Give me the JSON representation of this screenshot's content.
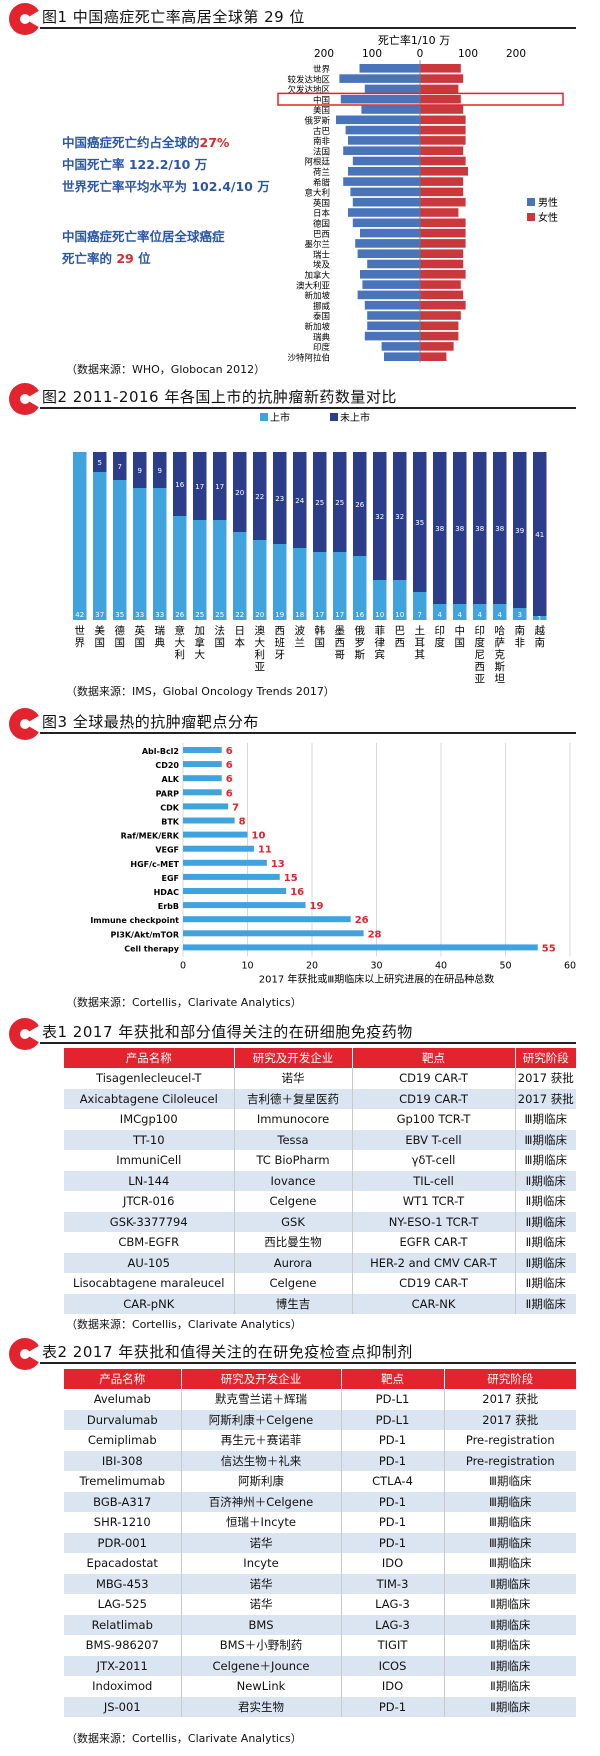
{
  "colors": {
    "accent_red": "#e3232d",
    "male_blue": "#4a74b9",
    "female_red": "#c8383d",
    "listed_blue": "#40a3de",
    "unlisted_navy": "#2c3d8a",
    "text_blue": "#2d57a6"
  },
  "fig1": {
    "title": "图1  中国癌症死亡率高居全球第 29 位",
    "axis_title": "死亡率1/10 万",
    "legend": [
      "男性",
      "女性"
    ],
    "annotations": [
      [
        {
          "t": "中国癌症死亡约占全球的",
          "red": false
        },
        {
          "t": "27%",
          "red": true
        }
      ],
      [
        {
          "t": "中国死亡率 122.2/10 万",
          "red": false
        }
      ],
      [
        {
          "t": "世界死亡率平均水平为 102.4/10 万",
          "red": false
        }
      ],
      [
        {
          "t": "中国癌症死亡率位居全球癌症",
          "red": false
        }
      ],
      [
        {
          "t": "死亡率的 ",
          "red": false
        },
        {
          "t": "29",
          "red": true
        },
        {
          "t": " 位",
          "red": false
        }
      ]
    ],
    "source": "（数据来源：WHO，Globocan 2012）",
    "chart_data": {
      "type": "bar",
      "orientation": "horizontal-diverging",
      "xlim": [
        -200,
        200
      ],
      "x_ticks": [
        "200",
        "100",
        "0",
        "100",
        "200"
      ],
      "highlight": "中国",
      "categories": [
        "世界",
        "较发达地区",
        "欠发达地区",
        "中国",
        "美国",
        "俄罗斯",
        "古巴",
        "南非",
        "法国",
        "阿根廷",
        "荷兰",
        "希腊",
        "意大利",
        "英国",
        "日本",
        "德国",
        "巴西",
        "墨尔兰",
        "瑞士",
        "埃及",
        "加拿大",
        "澳大利亚",
        "新加坡",
        "挪威",
        "泰国",
        "新加坡",
        "瑞典",
        "印度",
        "沙特阿拉伯"
      ],
      "series": [
        {
          "name": "男性",
          "values": [
            126,
            168,
            115,
            165,
            122,
            175,
            155,
            150,
            160,
            140,
            150,
            160,
            145,
            140,
            150,
            140,
            125,
            135,
            130,
            110,
            125,
            120,
            130,
            115,
            110,
            110,
            115,
            80,
            75
          ]
        },
        {
          "name": "女性",
          "values": [
            85,
            90,
            80,
            85,
            90,
            95,
            95,
            95,
            90,
            95,
            100,
            90,
            90,
            95,
            80,
            95,
            95,
            95,
            90,
            90,
            95,
            85,
            90,
            95,
            85,
            80,
            80,
            70,
            55
          ]
        }
      ]
    }
  },
  "fig2": {
    "title": "图2  2011-2016 年各国上市的抗肿瘤新药数量对比",
    "legend": [
      "上市",
      "未上市"
    ],
    "source": "（数据来源：IMS，Global Oncology Trends 2017）",
    "chart_data": {
      "type": "bar",
      "stacked": true,
      "ylim": [
        0,
        42
      ],
      "categories": [
        "世界",
        "美国",
        "德国",
        "英国",
        "瑞典",
        "意大利",
        "加拿大",
        "法国",
        "日本",
        "澳大利亚",
        "西班牙",
        "波兰",
        "韩国",
        "墨西哥",
        "俄罗斯",
        "菲律宾",
        "巴西",
        "土耳其",
        "印度",
        "中国",
        "印度尼西亚",
        "哈萨克斯坦",
        "南非",
        "越南"
      ],
      "series": [
        {
          "name": "上市",
          "values": [
            42,
            37,
            35,
            33,
            33,
            26,
            25,
            25,
            22,
            20,
            19,
            18,
            17,
            17,
            16,
            10,
            10,
            7,
            4,
            4,
            4,
            4,
            3,
            1
          ]
        },
        {
          "name": "未上市",
          "values": [
            0,
            5,
            7,
            9,
            9,
            16,
            17,
            17,
            20,
            22,
            23,
            24,
            25,
            25,
            26,
            32,
            32,
            35,
            38,
            38,
            38,
            38,
            39,
            41
          ]
        }
      ]
    }
  },
  "fig3": {
    "title": "图3  全球最热的抗肿瘤靶点分布",
    "source": "（数据来源：Cortellis，Clarivate Analytics）",
    "chart_data": {
      "type": "bar",
      "orientation": "horizontal",
      "xlabel": "2017 年获批或Ⅲ期临床以上研究进展的在研品种总数",
      "xlim": [
        0,
        60
      ],
      "x_ticks": [
        "0",
        "10",
        "20",
        "30",
        "40",
        "50",
        "60"
      ],
      "categories": [
        "Abl-Bcl2",
        "CD20",
        "ALK",
        "PARP",
        "CDK",
        "BTK",
        "Raf/MEK/ERK",
        "VEGF",
        "HGF/c-MET",
        "EGF",
        "HDAC",
        "ErbB",
        "Immune checkpoint",
        "PI3K/Akt/mTOR",
        "Cell therapy"
      ],
      "values": [
        6,
        6,
        6,
        6,
        7,
        8,
        10,
        11,
        13,
        15,
        16,
        19,
        26,
        28,
        55
      ]
    }
  },
  "table1": {
    "title": "表1  2017 年获批和部分值得关注的在研细胞免疫药物",
    "headers": [
      "产品名称",
      "研究及开发企业",
      "靶点",
      "研究阶段"
    ],
    "rows": [
      [
        "Tisagenlecleucel-T",
        "诺华",
        "CD19 CAR-T",
        "2017 获批"
      ],
      [
        "Axicabtagene Ciloleucel",
        "吉利德＋复星医药",
        "CD19 CAR-T",
        "2017 获批"
      ],
      [
        "IMCgp100",
        "Immunocore",
        "Gp100 TCR-T",
        "Ⅲ期临床"
      ],
      [
        "TT-10",
        "Tessa",
        "EBV T-cell",
        "Ⅲ期临床"
      ],
      [
        "ImmuniCell",
        "TC BioPharm",
        "γδT-cell",
        "Ⅲ期临床"
      ],
      [
        "LN-144",
        "Iovance",
        "TIL-cell",
        "Ⅱ期临床"
      ],
      [
        "JTCR-016",
        "Celgene",
        "WT1 TCR-T",
        "Ⅱ期临床"
      ],
      [
        "GSK-3377794",
        "GSK",
        "NY-ESO-1 TCR-T",
        "Ⅱ期临床"
      ],
      [
        "CBM-EGFR",
        "西比曼生物",
        "EGFR CAR-T",
        "Ⅱ期临床"
      ],
      [
        "AU-105",
        "Aurora",
        "HER-2 and CMV CAR-T",
        "Ⅱ期临床"
      ],
      [
        "Lisocabtagene maraleucel",
        "Celgene",
        "CD19 CAR-T",
        "Ⅱ期临床"
      ],
      [
        "CAR-pNK",
        "博生吉",
        "CAR-NK",
        "Ⅱ期临床"
      ]
    ],
    "source": "（数据来源：Cortellis，Clarivate Analytics）"
  },
  "table2": {
    "title": "表2  2017 年获批和值得关注的在研免疫检查点抑制剂",
    "headers": [
      "产品名称",
      "研究及开发企业",
      "靶点",
      "研究阶段"
    ],
    "rows": [
      [
        "Avelumab",
        "默克雪兰诺＋辉瑞",
        "PD-L1",
        "2017 获批"
      ],
      [
        "Durvalumab",
        "阿斯利康＋Celgene",
        "PD-L1",
        "2017 获批"
      ],
      [
        "Cemiplimab",
        "再生元＋赛诺菲",
        "PD-1",
        "Pre-registration"
      ],
      [
        "IBI-308",
        "信达生物＋礼来",
        "PD-1",
        "Pre-registration"
      ],
      [
        "Tremelimumab",
        "阿斯利康",
        "CTLA-4",
        "Ⅲ期临床"
      ],
      [
        "BGB-A317",
        "百济神州＋Celgene",
        "PD-1",
        "Ⅲ期临床"
      ],
      [
        "SHR-1210",
        "恒瑞＋Incyte",
        "PD-1",
        "Ⅲ期临床"
      ],
      [
        "PDR-001",
        "诺华",
        "PD-1",
        "Ⅲ期临床"
      ],
      [
        "Epacadostat",
        "Incyte",
        "IDO",
        "Ⅲ期临床"
      ],
      [
        "MBG-453",
        "诺华",
        "TIM-3",
        "Ⅱ期临床"
      ],
      [
        "LAG-525",
        "诺华",
        "LAG-3",
        "Ⅱ期临床"
      ],
      [
        "Relatlimab",
        "BMS",
        "LAG-3",
        "Ⅱ期临床"
      ],
      [
        "BMS-986207",
        "BMS＋小野制药",
        "TIGIT",
        "Ⅱ期临床"
      ],
      [
        "JTX-2011",
        "Celgene＋Jounce",
        "ICOS",
        "Ⅱ期临床"
      ],
      [
        "Indoximod",
        "NewLink",
        "IDO",
        "Ⅱ期临床"
      ],
      [
        "JS-001",
        "君实生物",
        "PD-1",
        "Ⅱ期临床"
      ]
    ],
    "source": "（数据来源：Cortellis，Clarivate Analytics）"
  }
}
